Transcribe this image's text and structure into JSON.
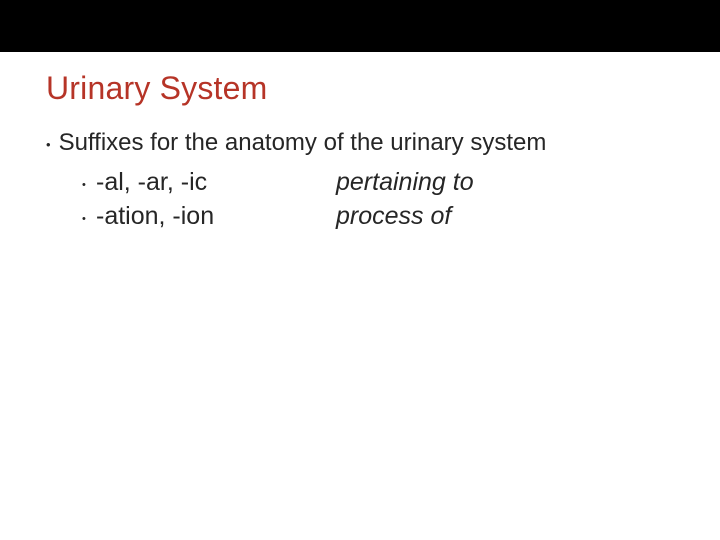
{
  "slide": {
    "title": "Urinary System",
    "title_color": "#b63427",
    "background_color": "#ffffff",
    "topbar_color": "#000000",
    "body_text_color": "#262626",
    "title_fontsize": 32,
    "body_fontsize": 24,
    "sub_fontsize": 25,
    "intro": "Suffixes for the anatomy of the urinary system",
    "items": [
      {
        "suffix": "-al, -ar, -ic",
        "meaning": "pertaining to"
      },
      {
        "suffix": "-ation, -ion",
        "meaning": "process of"
      }
    ]
  }
}
